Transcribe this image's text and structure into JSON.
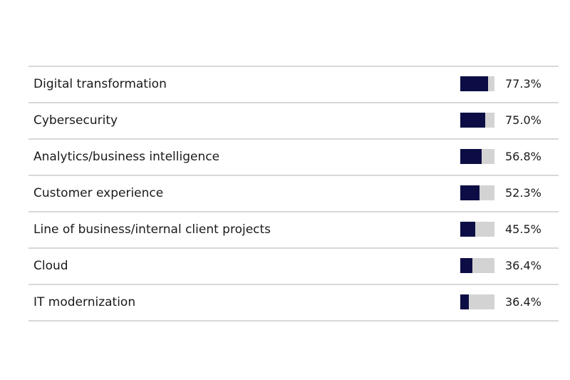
{
  "colors": {
    "bar_fill": "#0d0d45",
    "bar_track": "#d3d3d3",
    "divider": "#d8d8d8",
    "text": "#1a1a1a"
  },
  "chart_data": {
    "type": "bar",
    "orientation": "horizontal",
    "categories": [
      "Digital transformation",
      "Cybersecurity",
      "Analytics/business intelligence",
      "Customer experience",
      "Line of business/internal client projects",
      "Cloud",
      "IT modernization"
    ],
    "values": [
      77.3,
      75.0,
      56.8,
      52.3,
      45.5,
      36.4,
      36.4
    ],
    "value_labels": [
      "77.3%",
      "75.0%",
      "56.8%",
      "52.3%",
      "45.5%",
      "36.4%",
      "36.4%"
    ],
    "fill_fraction": [
      0.81,
      0.73,
      0.62,
      0.56,
      0.44,
      0.35,
      0.25
    ],
    "title": "",
    "xlabel": "",
    "ylabel": "",
    "grid": false,
    "legend": "none"
  }
}
